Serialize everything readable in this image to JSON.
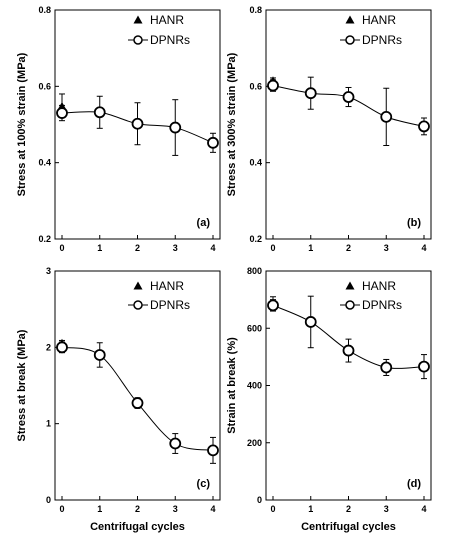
{
  "chart_data": [
    {
      "id": "a",
      "type": "line",
      "panel_label": "(a)",
      "ylabel": "Stress at 100% strain (MPa)",
      "xlabel": "",
      "ylim": [
        0.2,
        0.8
      ],
      "yticks": [
        0.2,
        0.4,
        0.6,
        0.8
      ],
      "ytick_labels": [
        "0.2",
        "0.4",
        "0.6",
        "0.8"
      ],
      "xlim": [
        0,
        4
      ],
      "xticks": [
        0,
        1,
        2,
        3,
        4
      ],
      "xtick_labels": [
        "0",
        "1",
        "2",
        "3",
        "4"
      ],
      "legend": "top-right",
      "series": [
        {
          "name": "HANR",
          "marker": "filled-triangle",
          "x": [
            0
          ],
          "y": [
            0.545
          ],
          "err": [
            0.035
          ]
        },
        {
          "name": "DPNRs",
          "marker": "open-circle",
          "x": [
            0,
            1,
            2,
            3,
            4
          ],
          "y": [
            0.53,
            0.532,
            0.502,
            0.492,
            0.452
          ],
          "err": [
            0.02,
            0.042,
            0.055,
            0.073,
            0.025
          ]
        }
      ]
    },
    {
      "id": "b",
      "type": "line",
      "panel_label": "(b)",
      "ylabel": "Stress at 300% strain (MPa)",
      "xlabel": "",
      "ylim": [
        0.2,
        0.8
      ],
      "yticks": [
        0.2,
        0.4,
        0.6,
        0.8
      ],
      "ytick_labels": [
        "0.2",
        "0.4",
        "0.6",
        "0.8"
      ],
      "xlim": [
        0,
        4
      ],
      "xticks": [
        0,
        1,
        2,
        3,
        4
      ],
      "xtick_labels": [
        "0",
        "1",
        "2",
        "3",
        "4"
      ],
      "legend": "top-right",
      "series": [
        {
          "name": "HANR",
          "marker": "filled-triangle",
          "x": [
            0
          ],
          "y": [
            0.612
          ],
          "err": [
            0.01
          ]
        },
        {
          "name": "DPNRs",
          "marker": "open-circle",
          "x": [
            0,
            1,
            2,
            3,
            4
          ],
          "y": [
            0.602,
            0.582,
            0.572,
            0.52,
            0.495
          ],
          "err": [
            0.015,
            0.042,
            0.025,
            0.075,
            0.022
          ]
        }
      ]
    },
    {
      "id": "c",
      "type": "line",
      "panel_label": "(c)",
      "ylabel": "Stress at break (MPa)",
      "xlabel": "Centrifugal cycles",
      "ylim": [
        0,
        3
      ],
      "yticks": [
        0,
        1,
        2,
        3
      ],
      "ytick_labels": [
        "0",
        "1",
        "2",
        "3"
      ],
      "xlim": [
        0,
        4
      ],
      "xticks": [
        0,
        1,
        2,
        3,
        4
      ],
      "xtick_labels": [
        "0",
        "1",
        "2",
        "3",
        "4"
      ],
      "legend": "top-right",
      "series": [
        {
          "name": "HANR",
          "marker": "filled-triangle",
          "x": [
            0
          ],
          "y": [
            2.04
          ],
          "err": [
            0.05
          ]
        },
        {
          "name": "DPNRs",
          "marker": "open-circle",
          "x": [
            0,
            1,
            2,
            3,
            4
          ],
          "y": [
            2.0,
            1.9,
            1.27,
            0.74,
            0.65
          ],
          "err": [
            0.07,
            0.16,
            0.07,
            0.13,
            0.17
          ]
        }
      ]
    },
    {
      "id": "d",
      "type": "line",
      "panel_label": "(d)",
      "ylabel": "Strain at break (%)",
      "xlabel": "Centrifugal cycles",
      "ylim": [
        0,
        800
      ],
      "yticks": [
        0,
        200,
        400,
        600,
        800
      ],
      "ytick_labels": [
        "0",
        "200",
        "400",
        "600",
        "800"
      ],
      "xlim": [
        0,
        4
      ],
      "xticks": [
        0,
        1,
        2,
        3,
        4
      ],
      "xtick_labels": [
        "0",
        "1",
        "2",
        "3",
        "4"
      ],
      "legend": "top-right",
      "series": [
        {
          "name": "HANR",
          "marker": "filled-triangle",
          "x": [
            0
          ],
          "y": [
            685
          ],
          "err": [
            25
          ]
        },
        {
          "name": "DPNRs",
          "marker": "open-circle",
          "x": [
            0,
            1,
            2,
            3,
            4
          ],
          "y": [
            680,
            622,
            522,
            463,
            466
          ],
          "err": [
            20,
            90,
            40,
            28,
            42
          ]
        }
      ]
    }
  ]
}
